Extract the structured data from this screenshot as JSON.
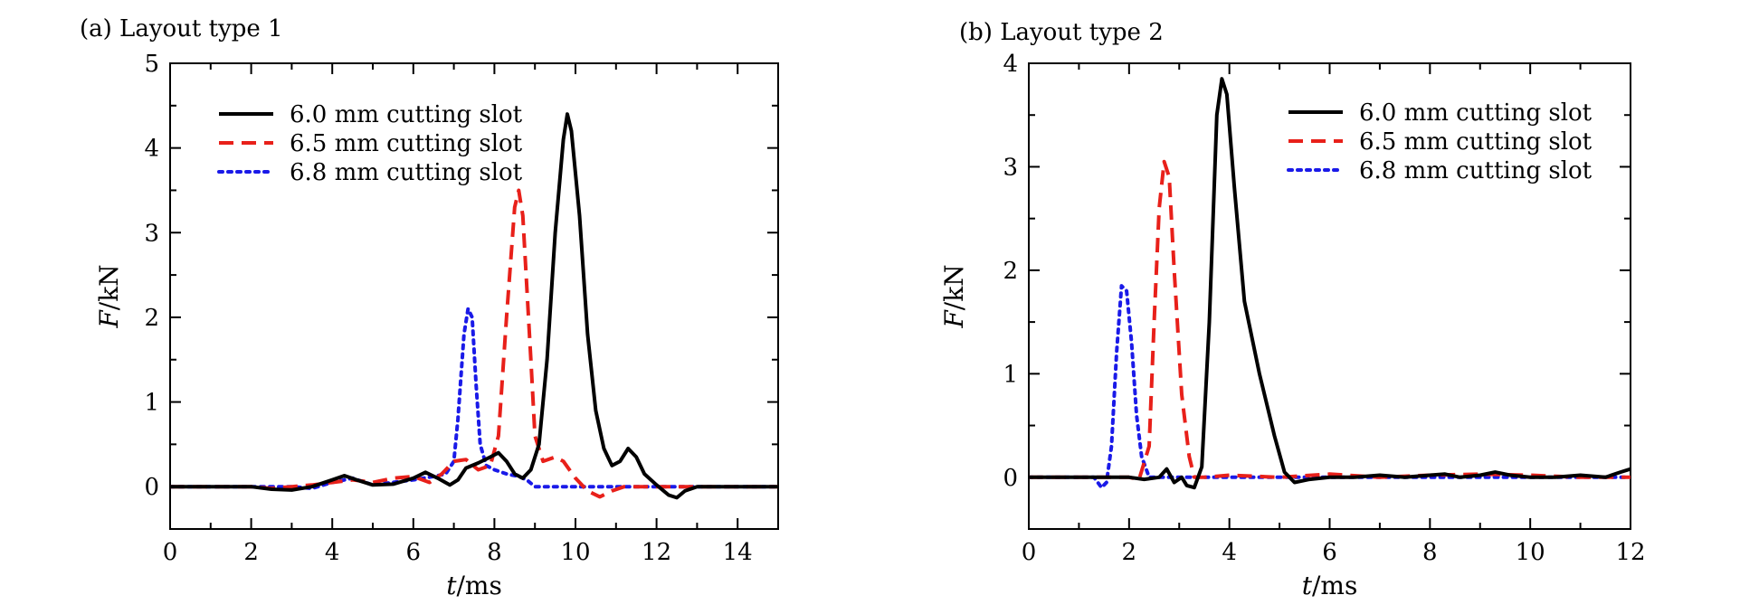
{
  "chart_data": [
    {
      "type": "line",
      "title": "(a) Layout type 1",
      "xlabel_var": "t",
      "xlabel_unit": "/ms",
      "ylabel_var": "F",
      "ylabel_unit": "/kN",
      "xlim": [
        0,
        15
      ],
      "ylim": [
        -0.5,
        5
      ],
      "xticks": [
        0,
        2,
        4,
        6,
        8,
        10,
        12,
        14
      ],
      "yticks": [
        0,
        1,
        2,
        3,
        4,
        5
      ],
      "grid": false,
      "legend_position": "top-left",
      "series": [
        {
          "name": "6.0 mm cutting slot",
          "color": "#000000",
          "dash": "solid",
          "points": [
            [
              0,
              0
            ],
            [
              2,
              0
            ],
            [
              2.5,
              -0.03
            ],
            [
              3,
              -0.04
            ],
            [
              3.5,
              0
            ],
            [
              4,
              0.08
            ],
            [
              4.3,
              0.13
            ],
            [
              4.6,
              0.08
            ],
            [
              5,
              0.02
            ],
            [
              5.5,
              0.03
            ],
            [
              6,
              0.1
            ],
            [
              6.3,
              0.17
            ],
            [
              6.6,
              0.1
            ],
            [
              6.9,
              0.02
            ],
            [
              7.1,
              0.08
            ],
            [
              7.3,
              0.22
            ],
            [
              7.6,
              0.28
            ],
            [
              7.9,
              0.35
            ],
            [
              8.1,
              0.4
            ],
            [
              8.3,
              0.3
            ],
            [
              8.5,
              0.15
            ],
            [
              8.7,
              0.1
            ],
            [
              8.9,
              0.2
            ],
            [
              9.1,
              0.5
            ],
            [
              9.3,
              1.5
            ],
            [
              9.5,
              3
            ],
            [
              9.7,
              4.1
            ],
            [
              9.8,
              4.4
            ],
            [
              9.9,
              4.2
            ],
            [
              10.1,
              3.2
            ],
            [
              10.3,
              1.8
            ],
            [
              10.5,
              0.9
            ],
            [
              10.7,
              0.45
            ],
            [
              10.9,
              0.25
            ],
            [
              11.1,
              0.3
            ],
            [
              11.3,
              0.45
            ],
            [
              11.5,
              0.35
            ],
            [
              11.7,
              0.15
            ],
            [
              12,
              0.02
            ],
            [
              12.3,
              -0.1
            ],
            [
              12.5,
              -0.13
            ],
            [
              12.7,
              -0.05
            ],
            [
              13,
              0
            ],
            [
              15,
              0
            ]
          ]
        },
        {
          "name": "6.5 mm cutting slot",
          "color": "#e8201a",
          "dash": "dashed",
          "points": [
            [
              0,
              0
            ],
            [
              2,
              0
            ],
            [
              2.5,
              -0.02
            ],
            [
              3,
              0
            ],
            [
              3.5,
              0.02
            ],
            [
              4,
              0.05
            ],
            [
              4.5,
              0.08
            ],
            [
              5,
              0.05
            ],
            [
              5.5,
              0.1
            ],
            [
              6,
              0.12
            ],
            [
              6.4,
              0.05
            ],
            [
              6.7,
              0.15
            ],
            [
              7,
              0.3
            ],
            [
              7.3,
              0.32
            ],
            [
              7.6,
              0.2
            ],
            [
              7.9,
              0.25
            ],
            [
              8.1,
              0.6
            ],
            [
              8.3,
              2
            ],
            [
              8.5,
              3.3
            ],
            [
              8.6,
              3.5
            ],
            [
              8.7,
              3.2
            ],
            [
              8.9,
              1.5
            ],
            [
              9,
              0.6
            ],
            [
              9.2,
              0.3
            ],
            [
              9.5,
              0.35
            ],
            [
              9.7,
              0.3
            ],
            [
              10,
              0.1
            ],
            [
              10.3,
              -0.05
            ],
            [
              10.6,
              -0.12
            ],
            [
              10.9,
              -0.05
            ],
            [
              11.2,
              0
            ],
            [
              12,
              0
            ],
            [
              13,
              0
            ],
            [
              15,
              0
            ]
          ]
        },
        {
          "name": "6.8 mm cutting slot",
          "color": "#1a1ae8",
          "dash": "dotted",
          "points": [
            [
              0,
              0
            ],
            [
              2,
              0
            ],
            [
              3,
              0
            ],
            [
              3.5,
              -0.02
            ],
            [
              4,
              0.05
            ],
            [
              4.5,
              0.1
            ],
            [
              5,
              0.02
            ],
            [
              5.5,
              0.05
            ],
            [
              6,
              0.08
            ],
            [
              6.5,
              0.12
            ],
            [
              6.8,
              0.15
            ],
            [
              7,
              0.3
            ],
            [
              7.1,
              0.8
            ],
            [
              7.25,
              1.8
            ],
            [
              7.35,
              2.1
            ],
            [
              7.45,
              2
            ],
            [
              7.55,
              1.2
            ],
            [
              7.65,
              0.5
            ],
            [
              7.8,
              0.25
            ],
            [
              8,
              0.2
            ],
            [
              8.3,
              0.15
            ],
            [
              8.6,
              0.12
            ],
            [
              8.8,
              0.08
            ],
            [
              9,
              0
            ],
            [
              10,
              0
            ],
            [
              12,
              0
            ],
            [
              15,
              0
            ]
          ]
        }
      ]
    },
    {
      "type": "line",
      "title": "(b) Layout type 2",
      "xlabel_var": "t",
      "xlabel_unit": "/ms",
      "ylabel_var": "F",
      "ylabel_unit": "/kN",
      "xlim": [
        0,
        12
      ],
      "ylim": [
        -0.5,
        4
      ],
      "xticks": [
        0,
        2,
        4,
        6,
        8,
        10,
        12
      ],
      "yticks": [
        0,
        1,
        2,
        3,
        4
      ],
      "grid": false,
      "legend_position": "top-right",
      "series": [
        {
          "name": "6.0 mm cutting slot",
          "color": "#000000",
          "dash": "solid",
          "points": [
            [
              0,
              0
            ],
            [
              1.5,
              0
            ],
            [
              2,
              0
            ],
            [
              2.3,
              -0.02
            ],
            [
              2.6,
              0
            ],
            [
              2.75,
              0.08
            ],
            [
              2.9,
              -0.05
            ],
            [
              3.05,
              0
            ],
            [
              3.15,
              -0.08
            ],
            [
              3.3,
              -0.1
            ],
            [
              3.45,
              0.1
            ],
            [
              3.6,
              1.5
            ],
            [
              3.75,
              3.5
            ],
            [
              3.85,
              3.85
            ],
            [
              3.95,
              3.7
            ],
            [
              4.1,
              2.8
            ],
            [
              4.3,
              1.7
            ],
            [
              4.6,
              1
            ],
            [
              4.9,
              0.4
            ],
            [
              5.1,
              0.05
            ],
            [
              5.3,
              -0.05
            ],
            [
              5.6,
              -0.02
            ],
            [
              6,
              0
            ],
            [
              6.5,
              0
            ],
            [
              7,
              0.02
            ],
            [
              7.5,
              0
            ],
            [
              8,
              0.02
            ],
            [
              8.3,
              0.03
            ],
            [
              8.6,
              0
            ],
            [
              9,
              0.02
            ],
            [
              9.3,
              0.05
            ],
            [
              9.6,
              0.02
            ],
            [
              10,
              0
            ],
            [
              10.5,
              0
            ],
            [
              11,
              0.02
            ],
            [
              11.5,
              0
            ],
            [
              11.8,
              0.05
            ],
            [
              12,
              0.08
            ]
          ]
        },
        {
          "name": "6.5 mm cutting slot",
          "color": "#e8201a",
          "dash": "dashed",
          "points": [
            [
              0,
              0
            ],
            [
              1.5,
              0
            ],
            [
              2,
              0
            ],
            [
              2.2,
              -0.02
            ],
            [
              2.4,
              0.3
            ],
            [
              2.5,
              1.5
            ],
            [
              2.6,
              2.6
            ],
            [
              2.7,
              3.05
            ],
            [
              2.8,
              2.9
            ],
            [
              2.9,
              2
            ],
            [
              3.05,
              0.8
            ],
            [
              3.2,
              0.2
            ],
            [
              3.3,
              0
            ],
            [
              3.5,
              0
            ],
            [
              4,
              0.02
            ],
            [
              5,
              0
            ],
            [
              6,
              0.03
            ],
            [
              7,
              0
            ],
            [
              8,
              0.02
            ],
            [
              9,
              0.03
            ],
            [
              10,
              0.02
            ],
            [
              11,
              0
            ],
            [
              12,
              0
            ]
          ]
        },
        {
          "name": "6.8 mm cutting slot",
          "color": "#1a1ae8",
          "dash": "dotted",
          "points": [
            [
              0,
              0
            ],
            [
              1,
              0
            ],
            [
              1.3,
              0
            ],
            [
              1.45,
              -0.1
            ],
            [
              1.55,
              -0.05
            ],
            [
              1.65,
              0.3
            ],
            [
              1.75,
              1.2
            ],
            [
              1.85,
              1.85
            ],
            [
              1.95,
              1.8
            ],
            [
              2.05,
              1.3
            ],
            [
              2.15,
              0.6
            ],
            [
              2.25,
              0.2
            ],
            [
              2.4,
              0
            ],
            [
              3,
              0
            ],
            [
              4,
              0
            ],
            [
              6,
              0
            ],
            [
              8,
              0
            ],
            [
              12,
              0
            ]
          ]
        }
      ]
    }
  ]
}
